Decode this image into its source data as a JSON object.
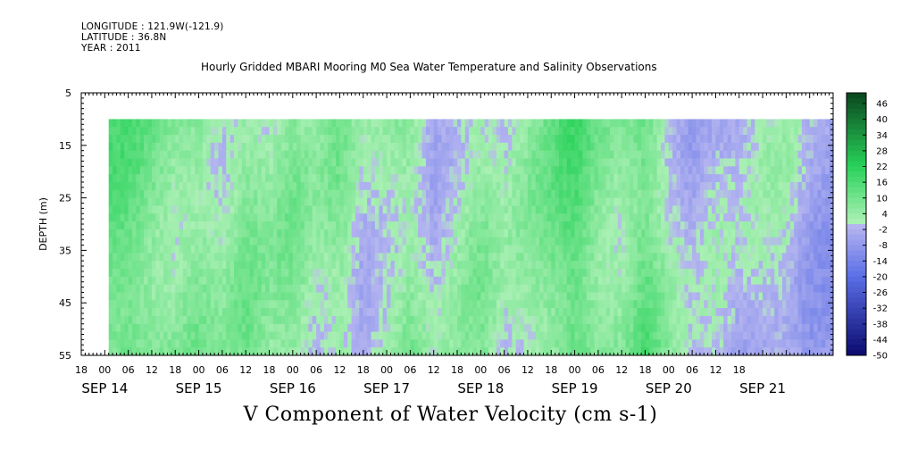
{
  "header": {
    "longitude": "LONGITUDE : 121.9W(-121.9)",
    "latitude": "LATITUDE : 36.8N",
    "year": "YEAR : 2011"
  },
  "chart_data": {
    "type": "heatmap",
    "title": "Hourly Gridded MBARI Mooring M0 Sea Water Temperature and Salinity Observations",
    "xlabel": "V Component of Water Velocity (cm s-1)",
    "ylabel": "DEPTH (m)",
    "ylim": [
      5,
      55
    ],
    "y_reversed": true,
    "y_ticks": [
      5,
      15,
      25,
      35,
      45,
      55
    ],
    "data_depth_range": [
      10,
      55
    ],
    "x_start_hours": -6,
    "x_end_hours": 186,
    "data_start_hours": 1,
    "data_end_hours": 186,
    "x_hour_ticks": [
      "18",
      "00",
      "06",
      "12",
      "18",
      "00",
      "06",
      "12",
      "18",
      "00",
      "06",
      "12",
      "18",
      "00",
      "06",
      "12",
      "18",
      "00",
      "06",
      "12",
      "18",
      "00",
      "06",
      "12",
      "18",
      "00",
      "06",
      "12",
      "18"
    ],
    "x_date_labels": [
      {
        "label": "SEP 14",
        "at_hour": 0
      },
      {
        "label": "SEP 15",
        "at_hour": 24
      },
      {
        "label": "SEP 16",
        "at_hour": 48
      },
      {
        "label": "SEP 17",
        "at_hour": 72
      },
      {
        "label": "SEP 18",
        "at_hour": 96
      },
      {
        "label": "SEP 19",
        "at_hour": 120
      },
      {
        "label": "SEP 20",
        "at_hour": 144
      },
      {
        "label": "SEP 21",
        "at_hour": 168
      }
    ],
    "colorbar": {
      "labels": [
        46,
        40,
        34,
        28,
        22,
        16,
        10,
        4,
        -2,
        -8,
        -14,
        -20,
        -26,
        -32,
        -38,
        -44,
        -50
      ],
      "vmin": -50,
      "vmax": 50,
      "colors": {
        "deep_negative": "#0a0a6e",
        "mid_negative": "#5a6ee6",
        "light_negative": "#b4b4f0",
        "light_positive": "#aaf0b4",
        "mid_positive": "#28d25a",
        "deep_positive": "#0a461e"
      }
    },
    "profile_mean_velocity": [
      {
        "hour": 1,
        "v": 12
      },
      {
        "hour": 6,
        "v": 13
      },
      {
        "hour": 12,
        "v": 9
      },
      {
        "hour": 18,
        "v": 6
      },
      {
        "hour": 24,
        "v": 8
      },
      {
        "hour": 30,
        "v": 3
      },
      {
        "hour": 36,
        "v": 8
      },
      {
        "hour": 42,
        "v": 4
      },
      {
        "hour": 48,
        "v": 7
      },
      {
        "hour": 54,
        "v": 2
      },
      {
        "hour": 60,
        "v": 7
      },
      {
        "hour": 66,
        "v": -1
      },
      {
        "hour": 72,
        "v": 3
      },
      {
        "hour": 78,
        "v": 7
      },
      {
        "hour": 84,
        "v": -2
      },
      {
        "hour": 90,
        "v": 2
      },
      {
        "hour": 96,
        "v": 6
      },
      {
        "hour": 102,
        "v": 0
      },
      {
        "hour": 108,
        "v": 4
      },
      {
        "hour": 114,
        "v": 9
      },
      {
        "hour": 120,
        "v": 15
      },
      {
        "hour": 126,
        "v": 8
      },
      {
        "hour": 132,
        "v": 6
      },
      {
        "hour": 138,
        "v": 13
      },
      {
        "hour": 144,
        "v": 3
      },
      {
        "hour": 150,
        "v": -4
      },
      {
        "hour": 156,
        "v": -1
      },
      {
        "hour": 162,
        "v": -4
      },
      {
        "hour": 168,
        "v": 0
      },
      {
        "hour": 174,
        "v": 1
      },
      {
        "hour": 180,
        "v": -6
      },
      {
        "hour": 186,
        "v": -7
      }
    ]
  }
}
